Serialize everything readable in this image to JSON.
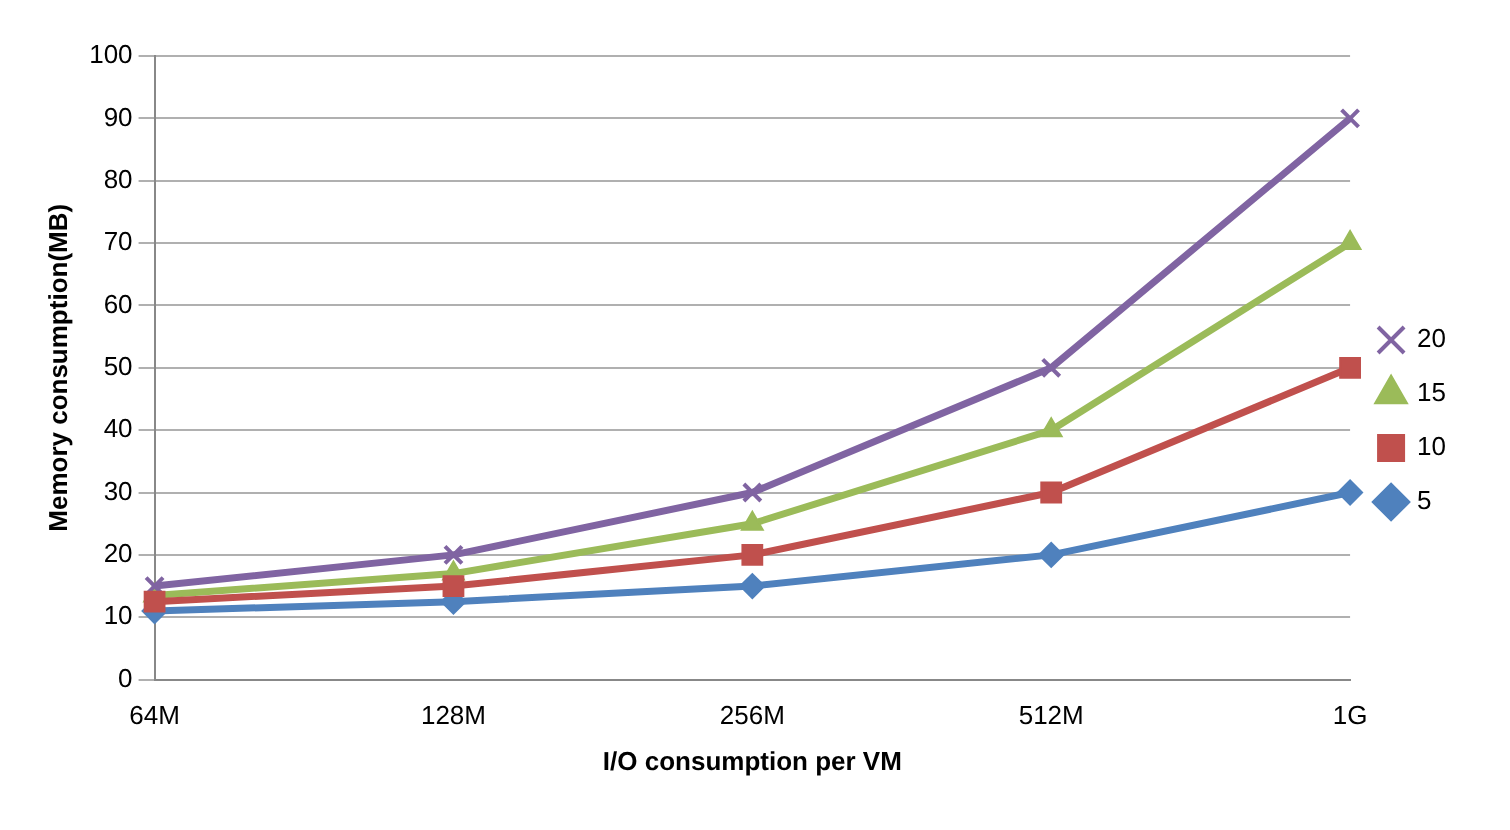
{
  "chart_data": {
    "type": "line",
    "xlabel": "I/O consumption per VM",
    "ylabel": "Memory consumption(MB)",
    "categories": [
      "64M",
      "128M",
      "256M",
      "512M",
      "1G"
    ],
    "series": [
      {
        "name": "20",
        "color": "#8064a2",
        "marker": "cross",
        "values": [
          15,
          20,
          30,
          50,
          90
        ]
      },
      {
        "name": "15",
        "color": "#9bbb59",
        "marker": "triangle",
        "values": [
          13.5,
          17,
          25,
          40,
          70
        ]
      },
      {
        "name": "10",
        "color": "#c0504d",
        "marker": "square",
        "values": [
          12.5,
          15,
          20,
          30,
          50
        ]
      },
      {
        "name": "5",
        "color": "#4f81bd",
        "marker": "diamond",
        "values": [
          11,
          12.5,
          15,
          20,
          30
        ]
      }
    ],
    "ylim": [
      0,
      100
    ],
    "yticks": [
      0,
      10,
      20,
      30,
      40,
      50,
      60,
      70,
      80,
      90,
      100
    ],
    "grid": "y",
    "legend": "right"
  }
}
